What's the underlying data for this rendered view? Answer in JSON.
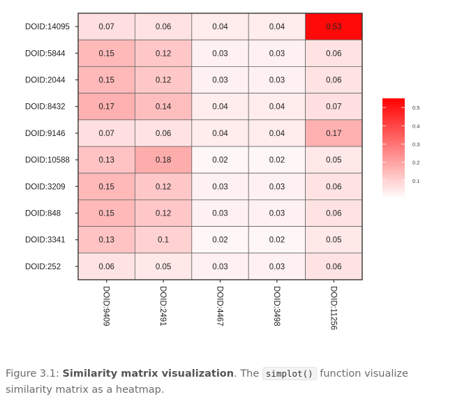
{
  "chart_data": {
    "type": "heatmap",
    "rows": [
      "DOID:14095",
      "DOID:5844",
      "DOID:2044",
      "DOID:8432",
      "DOID:9146",
      "DOID:10588",
      "DOID:3209",
      "DOID:848",
      "DOID:3341",
      "DOID:252"
    ],
    "columns": [
      "DOID:9409",
      "DOID:2491",
      "DOID:4467",
      "DOID:3498",
      "DOID:11256"
    ],
    "cell_labels": [
      [
        "0.07",
        "0.06",
        "0.04",
        "0.04",
        "0.53"
      ],
      [
        "0.15",
        "0.12",
        "0.03",
        "0.03",
        "0.06"
      ],
      [
        "0.15",
        "0.12",
        "0.03",
        "0.03",
        "0.06"
      ],
      [
        "0.17",
        "0.14",
        "0.04",
        "0.04",
        "0.07"
      ],
      [
        "0.07",
        "0.06",
        "0.04",
        "0.04",
        "0.17"
      ],
      [
        "0.13",
        "0.18",
        "0.02",
        "0.02",
        "0.05"
      ],
      [
        "0.15",
        "0.12",
        "0.03",
        "0.03",
        "0.06"
      ],
      [
        "0.15",
        "0.12",
        "0.03",
        "0.03",
        "0.06"
      ],
      [
        "0.13",
        "0.1",
        "0.02",
        "0.02",
        "0.05"
      ],
      [
        "0.06",
        "0.05",
        "0.03",
        "0.03",
        "0.06"
      ]
    ],
    "legend": {
      "placement": "right",
      "range": [
        0,
        0.55
      ],
      "ticks": [
        "0.5",
        "0.4",
        "0.3",
        "0.2",
        "0.1"
      ],
      "color_low": "#ffffff",
      "color_high": "#ff0000"
    }
  },
  "caption": {
    "prefix": "Figure 3.1: ",
    "bold": "Similarity matrix visualization",
    "middle": ". The ",
    "code": "simplot()",
    "suffix": " function visualize similarity matrix as a heatmap."
  }
}
